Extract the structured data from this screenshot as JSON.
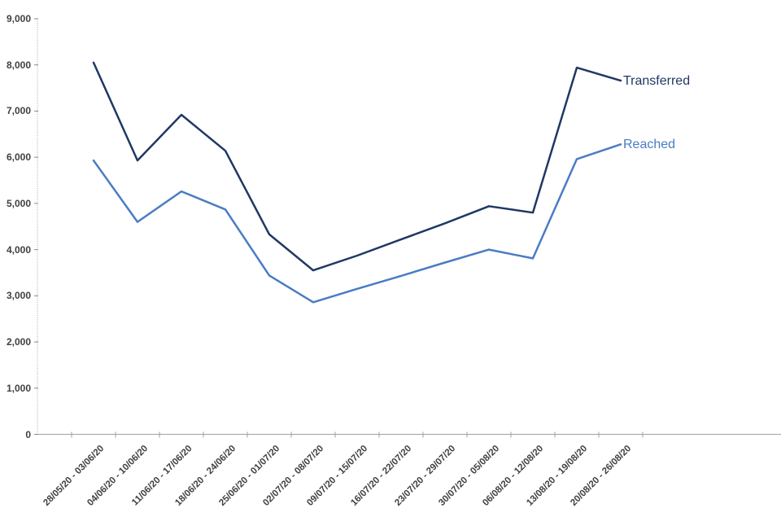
{
  "chart_data": {
    "type": "line",
    "title": "",
    "xlabel": "",
    "ylabel": "",
    "categories": [
      "28/05/20 - 03/06/20",
      "04/06/20 - 10/06/20",
      "11/06/20 - 17/06/20",
      "18/06/20 - 24/06/20",
      "25/06/20 - 01/07/20",
      "02/07/20 - 08/07/20",
      "09/07/20 - 15/07/20",
      "16/07/20 - 22/07/20",
      "23/07/20 - 29/07/20",
      "30/07/20 - 05/08/20",
      "06/08/20 - 12/08/20",
      "13/08/20 - 19/08/20",
      "20/08/20 - 26/08/20"
    ],
    "series": [
      {
        "name": "Transferred",
        "color": "#1f3864",
        "values": [
          8050,
          5930,
          6920,
          6140,
          4330,
          3550,
          3870,
          4220,
          4570,
          4940,
          4800,
          7940,
          7660
        ]
      },
      {
        "name": "Reached",
        "color": "#4a7cc4",
        "values": [
          5930,
          4600,
          5260,
          4870,
          3440,
          2860,
          3150,
          3430,
          3720,
          4000,
          3810,
          5960,
          6280
        ]
      }
    ],
    "ylim": [
      0,
      9000
    ],
    "ytick_interval": 1000,
    "ytick_labels": [
      "0",
      "1,000",
      "2,000",
      "3,000",
      "4,000",
      "5,000",
      "6,000",
      "7,000",
      "8,000",
      "9,000"
    ],
    "grid": false,
    "legend_position": "line-end",
    "axis_color": "#9f9fa6",
    "y_axis_dotted_color": "#a3a3ab",
    "tick_label_color": "#404040"
  }
}
